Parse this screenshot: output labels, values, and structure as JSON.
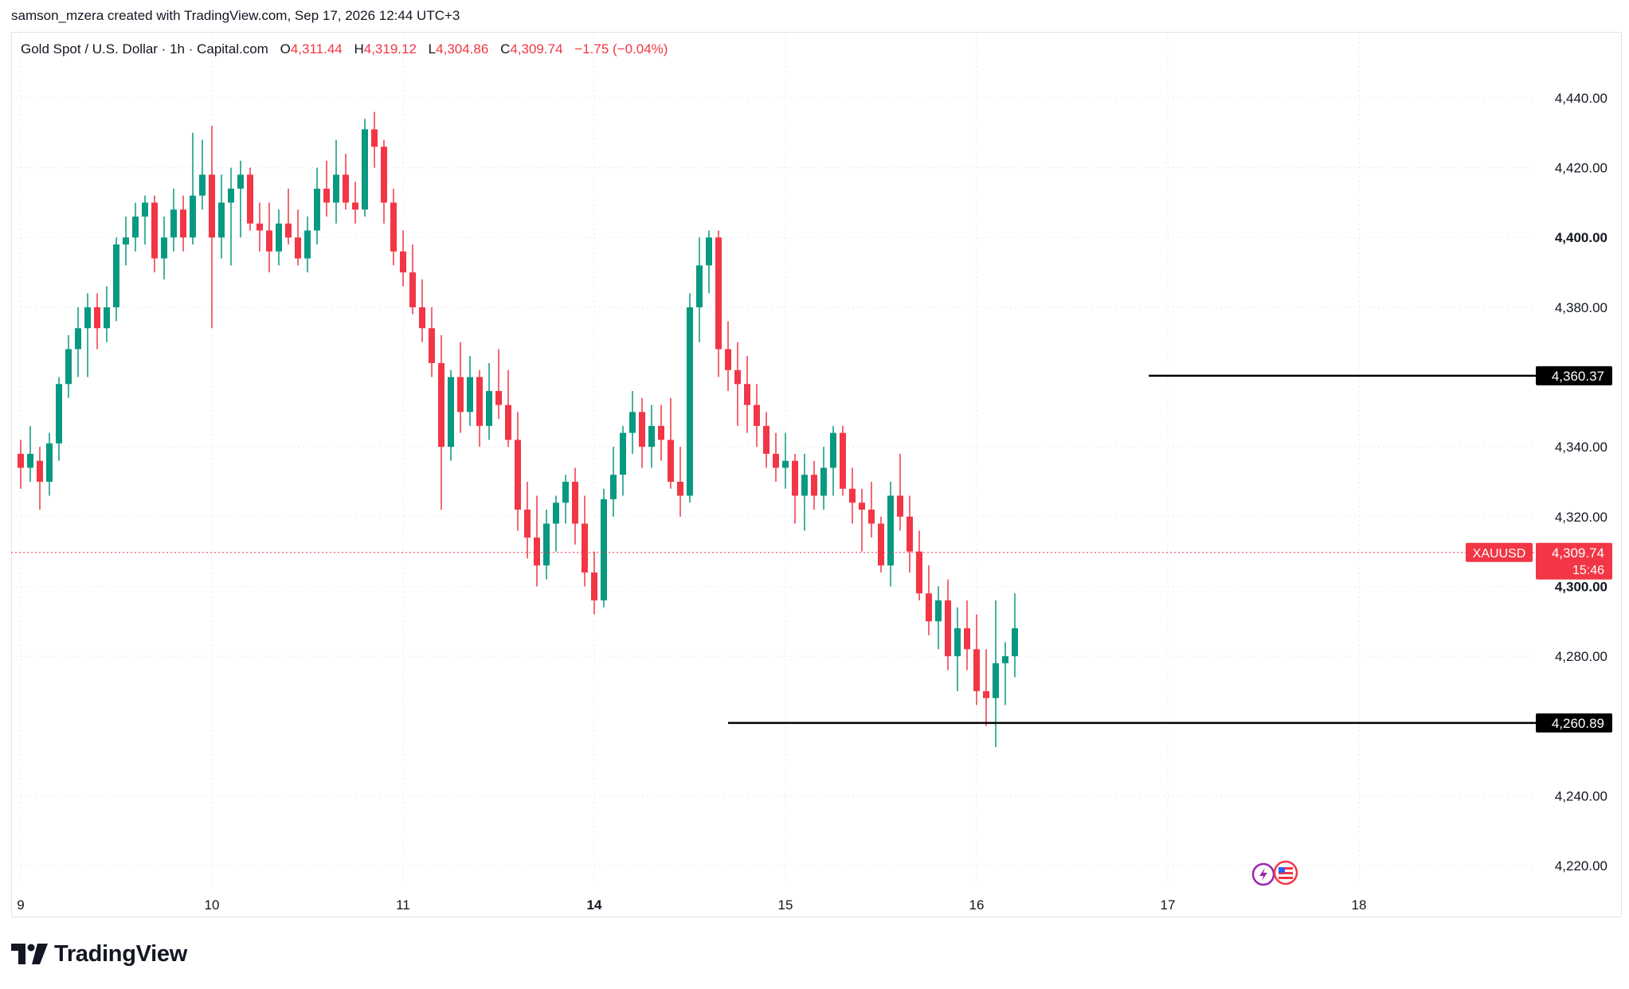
{
  "credit": "samson_mzera created with TradingView.com, Sep 17, 2026 12:44 UTC+3",
  "legend": {
    "symbol": "Gold Spot / U.S. Dollar · 1h · Capital.com",
    "o_label": "O",
    "o_value": "4,311.44",
    "h_label": "H",
    "h_value": "4,319.12",
    "l_label": "L",
    "l_value": "4,304.86",
    "c_label": "C",
    "c_value": "4,309.74",
    "change": "−1.75 (−0.04%)"
  },
  "colors": {
    "up": "#089981",
    "down": "#f23645",
    "grid": "#e6e8ee",
    "axis_text": "#131722",
    "level_line": "#000000",
    "price_label_bg": "#f23645"
  },
  "logo_text": "TradingView",
  "chart_data": {
    "type": "candlestick",
    "symbol": "XAUUSD",
    "timeframe": "1h",
    "y_ticks": [
      {
        "value": 4440,
        "label": "4,440.00",
        "bold": false
      },
      {
        "value": 4420,
        "label": "4,420.00",
        "bold": false
      },
      {
        "value": 4400,
        "label": "4,400.00",
        "bold": true
      },
      {
        "value": 4380,
        "label": "4,380.00",
        "bold": false
      },
      {
        "value": 4340,
        "label": "4,340.00",
        "bold": false
      },
      {
        "value": 4320,
        "label": "4,320.00",
        "bold": false
      },
      {
        "value": 4300,
        "label": "4,300.00",
        "bold": true
      },
      {
        "value": 4280,
        "label": "4,280.00",
        "bold": false
      },
      {
        "value": 4240,
        "label": "4,240.00",
        "bold": false
      },
      {
        "value": 4220,
        "label": "4,220.00",
        "bold": false
      }
    ],
    "x_ticks": [
      {
        "index": 0,
        "label": "9",
        "bold": false
      },
      {
        "index": 20,
        "label": "10",
        "bold": false
      },
      {
        "index": 40,
        "label": "11",
        "bold": false
      },
      {
        "index": 60,
        "label": "14",
        "bold": true
      },
      {
        "index": 80,
        "label": "15",
        "bold": false
      },
      {
        "index": 100,
        "label": "16",
        "bold": false
      },
      {
        "index": 120,
        "label": "17",
        "bold": false
      },
      {
        "index": 140,
        "label": "18",
        "bold": false
      }
    ],
    "current_price": {
      "value": 4309.74,
      "symbol_label": "XAUUSD",
      "price_label": "4,309.74",
      "countdown": "15:46"
    },
    "levels": [
      {
        "value": 4360.37,
        "label": "4,360.37",
        "start_index": 118
      },
      {
        "value": 4260.89,
        "label": "4,260.89",
        "start_index": 74
      }
    ],
    "candles": [
      {
        "o": 4338,
        "h": 4342,
        "l": 4328,
        "c": 4334
      },
      {
        "o": 4334,
        "h": 4346,
        "l": 4330,
        "c": 4338
      },
      {
        "o": 4336,
        "h": 4340,
        "l": 4322,
        "c": 4330
      },
      {
        "o": 4330,
        "h": 4344,
        "l": 4326,
        "c": 4341
      },
      {
        "o": 4341,
        "h": 4360,
        "l": 4336,
        "c": 4358
      },
      {
        "o": 4358,
        "h": 4372,
        "l": 4354,
        "c": 4368
      },
      {
        "o": 4368,
        "h": 4380,
        "l": 4360,
        "c": 4374
      },
      {
        "o": 4374,
        "h": 4384,
        "l": 4360,
        "c": 4380
      },
      {
        "o": 4380,
        "h": 4384,
        "l": 4368,
        "c": 4374
      },
      {
        "o": 4374,
        "h": 4386,
        "l": 4370,
        "c": 4380
      },
      {
        "o": 4380,
        "h": 4400,
        "l": 4376,
        "c": 4398
      },
      {
        "o": 4398,
        "h": 4406,
        "l": 4392,
        "c": 4400
      },
      {
        "o": 4400,
        "h": 4410,
        "l": 4396,
        "c": 4406
      },
      {
        "o": 4406,
        "h": 4412,
        "l": 4398,
        "c": 4410
      },
      {
        "o": 4410,
        "h": 4412,
        "l": 4390,
        "c": 4394
      },
      {
        "o": 4394,
        "h": 4406,
        "l": 4388,
        "c": 4400
      },
      {
        "o": 4400,
        "h": 4414,
        "l": 4396,
        "c": 4408
      },
      {
        "o": 4408,
        "h": 4412,
        "l": 4396,
        "c": 4400
      },
      {
        "o": 4400,
        "h": 4430,
        "l": 4398,
        "c": 4412
      },
      {
        "o": 4412,
        "h": 4428,
        "l": 4408,
        "c": 4418
      },
      {
        "o": 4418,
        "h": 4432,
        "l": 4374,
        "c": 4400
      },
      {
        "o": 4400,
        "h": 4418,
        "l": 4394,
        "c": 4410
      },
      {
        "o": 4410,
        "h": 4420,
        "l": 4392,
        "c": 4414
      },
      {
        "o": 4414,
        "h": 4422,
        "l": 4400,
        "c": 4418
      },
      {
        "o": 4418,
        "h": 4420,
        "l": 4402,
        "c": 4404
      },
      {
        "o": 4404,
        "h": 4410,
        "l": 4396,
        "c": 4402
      },
      {
        "o": 4402,
        "h": 4410,
        "l": 4390,
        "c": 4396
      },
      {
        "o": 4396,
        "h": 4408,
        "l": 4392,
        "c": 4404
      },
      {
        "o": 4404,
        "h": 4414,
        "l": 4398,
        "c": 4400
      },
      {
        "o": 4400,
        "h": 4408,
        "l": 4392,
        "c": 4394
      },
      {
        "o": 4394,
        "h": 4406,
        "l": 4390,
        "c": 4402
      },
      {
        "o": 4402,
        "h": 4420,
        "l": 4398,
        "c": 4414
      },
      {
        "o": 4414,
        "h": 4422,
        "l": 4406,
        "c": 4410
      },
      {
        "o": 4410,
        "h": 4428,
        "l": 4404,
        "c": 4418
      },
      {
        "o": 4418,
        "h": 4424,
        "l": 4408,
        "c": 4410
      },
      {
        "o": 4410,
        "h": 4416,
        "l": 4404,
        "c": 4408
      },
      {
        "o": 4408,
        "h": 4434,
        "l": 4406,
        "c": 4431
      },
      {
        "o": 4431,
        "h": 4436,
        "l": 4420,
        "c": 4426
      },
      {
        "o": 4426,
        "h": 4428,
        "l": 4404,
        "c": 4410
      },
      {
        "o": 4410,
        "h": 4414,
        "l": 4392,
        "c": 4396
      },
      {
        "o": 4396,
        "h": 4402,
        "l": 4386,
        "c": 4390
      },
      {
        "o": 4390,
        "h": 4398,
        "l": 4378,
        "c": 4380
      },
      {
        "o": 4380,
        "h": 4388,
        "l": 4370,
        "c": 4374
      },
      {
        "o": 4374,
        "h": 4380,
        "l": 4360,
        "c": 4364
      },
      {
        "o": 4364,
        "h": 4372,
        "l": 4322,
        "c": 4340
      },
      {
        "o": 4340,
        "h": 4362,
        "l": 4336,
        "c": 4360
      },
      {
        "o": 4360,
        "h": 4370,
        "l": 4344,
        "c": 4350
      },
      {
        "o": 4350,
        "h": 4366,
        "l": 4346,
        "c": 4360
      },
      {
        "o": 4360,
        "h": 4362,
        "l": 4340,
        "c": 4346
      },
      {
        "o": 4346,
        "h": 4364,
        "l": 4342,
        "c": 4356
      },
      {
        "o": 4356,
        "h": 4368,
        "l": 4348,
        "c": 4352
      },
      {
        "o": 4352,
        "h": 4362,
        "l": 4340,
        "c": 4342
      },
      {
        "o": 4342,
        "h": 4350,
        "l": 4316,
        "c": 4322
      },
      {
        "o": 4322,
        "h": 4330,
        "l": 4308,
        "c": 4314
      },
      {
        "o": 4314,
        "h": 4326,
        "l": 4300,
        "c": 4306
      },
      {
        "o": 4306,
        "h": 4322,
        "l": 4302,
        "c": 4318
      },
      {
        "o": 4318,
        "h": 4326,
        "l": 4310,
        "c": 4324
      },
      {
        "o": 4324,
        "h": 4332,
        "l": 4318,
        "c": 4330
      },
      {
        "o": 4330,
        "h": 4334,
        "l": 4312,
        "c": 4318
      },
      {
        "o": 4318,
        "h": 4326,
        "l": 4300,
        "c": 4304
      },
      {
        "o": 4304,
        "h": 4310,
        "l": 4292,
        "c": 4296
      },
      {
        "o": 4296,
        "h": 4328,
        "l": 4294,
        "c": 4325
      },
      {
        "o": 4325,
        "h": 4340,
        "l": 4320,
        "c": 4332
      },
      {
        "o": 4332,
        "h": 4346,
        "l": 4326,
        "c": 4344
      },
      {
        "o": 4344,
        "h": 4356,
        "l": 4338,
        "c": 4350
      },
      {
        "o": 4350,
        "h": 4354,
        "l": 4334,
        "c": 4340
      },
      {
        "o": 4340,
        "h": 4352,
        "l": 4334,
        "c": 4346
      },
      {
        "o": 4346,
        "h": 4352,
        "l": 4336,
        "c": 4342
      },
      {
        "o": 4342,
        "h": 4354,
        "l": 4328,
        "c": 4330
      },
      {
        "o": 4330,
        "h": 4340,
        "l": 4320,
        "c": 4326
      },
      {
        "o": 4326,
        "h": 4384,
        "l": 4324,
        "c": 4380
      },
      {
        "o": 4380,
        "h": 4400,
        "l": 4370,
        "c": 4392
      },
      {
        "o": 4392,
        "h": 4402,
        "l": 4384,
        "c": 4400
      },
      {
        "o": 4400,
        "h": 4402,
        "l": 4360,
        "c": 4368
      },
      {
        "o": 4368,
        "h": 4376,
        "l": 4356,
        "c": 4362
      },
      {
        "o": 4362,
        "h": 4370,
        "l": 4346,
        "c": 4358
      },
      {
        "o": 4358,
        "h": 4366,
        "l": 4344,
        "c": 4352
      },
      {
        "o": 4352,
        "h": 4358,
        "l": 4340,
        "c": 4346
      },
      {
        "o": 4346,
        "h": 4350,
        "l": 4334,
        "c": 4338
      },
      {
        "o": 4338,
        "h": 4344,
        "l": 4330,
        "c": 4334
      },
      {
        "o": 4334,
        "h": 4344,
        "l": 4328,
        "c": 4336
      },
      {
        "o": 4336,
        "h": 4338,
        "l": 4318,
        "c": 4326
      },
      {
        "o": 4326,
        "h": 4338,
        "l": 4316,
        "c": 4332
      },
      {
        "o": 4332,
        "h": 4336,
        "l": 4322,
        "c": 4326
      },
      {
        "o": 4326,
        "h": 4340,
        "l": 4322,
        "c": 4334
      },
      {
        "o": 4334,
        "h": 4346,
        "l": 4326,
        "c": 4344
      },
      {
        "o": 4344,
        "h": 4346,
        "l": 4326,
        "c": 4328
      },
      {
        "o": 4328,
        "h": 4334,
        "l": 4318,
        "c": 4324
      },
      {
        "o": 4324,
        "h": 4328,
        "l": 4310,
        "c": 4322
      },
      {
        "o": 4322,
        "h": 4330,
        "l": 4314,
        "c": 4318
      },
      {
        "o": 4318,
        "h": 4320,
        "l": 4304,
        "c": 4306
      },
      {
        "o": 4306,
        "h": 4330,
        "l": 4300,
        "c": 4326
      },
      {
        "o": 4326,
        "h": 4338,
        "l": 4316,
        "c": 4320
      },
      {
        "o": 4320,
        "h": 4326,
        "l": 4304,
        "c": 4310
      },
      {
        "o": 4310,
        "h": 4316,
        "l": 4296,
        "c": 4298
      },
      {
        "o": 4298,
        "h": 4306,
        "l": 4286,
        "c": 4290
      },
      {
        "o": 4290,
        "h": 4300,
        "l": 4282,
        "c": 4296
      },
      {
        "o": 4296,
        "h": 4302,
        "l": 4276,
        "c": 4280
      },
      {
        "o": 4280,
        "h": 4294,
        "l": 4270,
        "c": 4288
      },
      {
        "o": 4288,
        "h": 4296,
        "l": 4276,
        "c": 4282
      },
      {
        "o": 4282,
        "h": 4292,
        "l": 4266,
        "c": 4270
      },
      {
        "o": 4270,
        "h": 4282,
        "l": 4260,
        "c": 4268
      },
      {
        "o": 4268,
        "h": 4296,
        "l": 4254,
        "c": 4278
      },
      {
        "o": 4278,
        "h": 4284,
        "l": 4266,
        "c": 4280
      },
      {
        "o": 4280,
        "h": 4298,
        "l": 4274,
        "c": 4288
      }
    ]
  }
}
